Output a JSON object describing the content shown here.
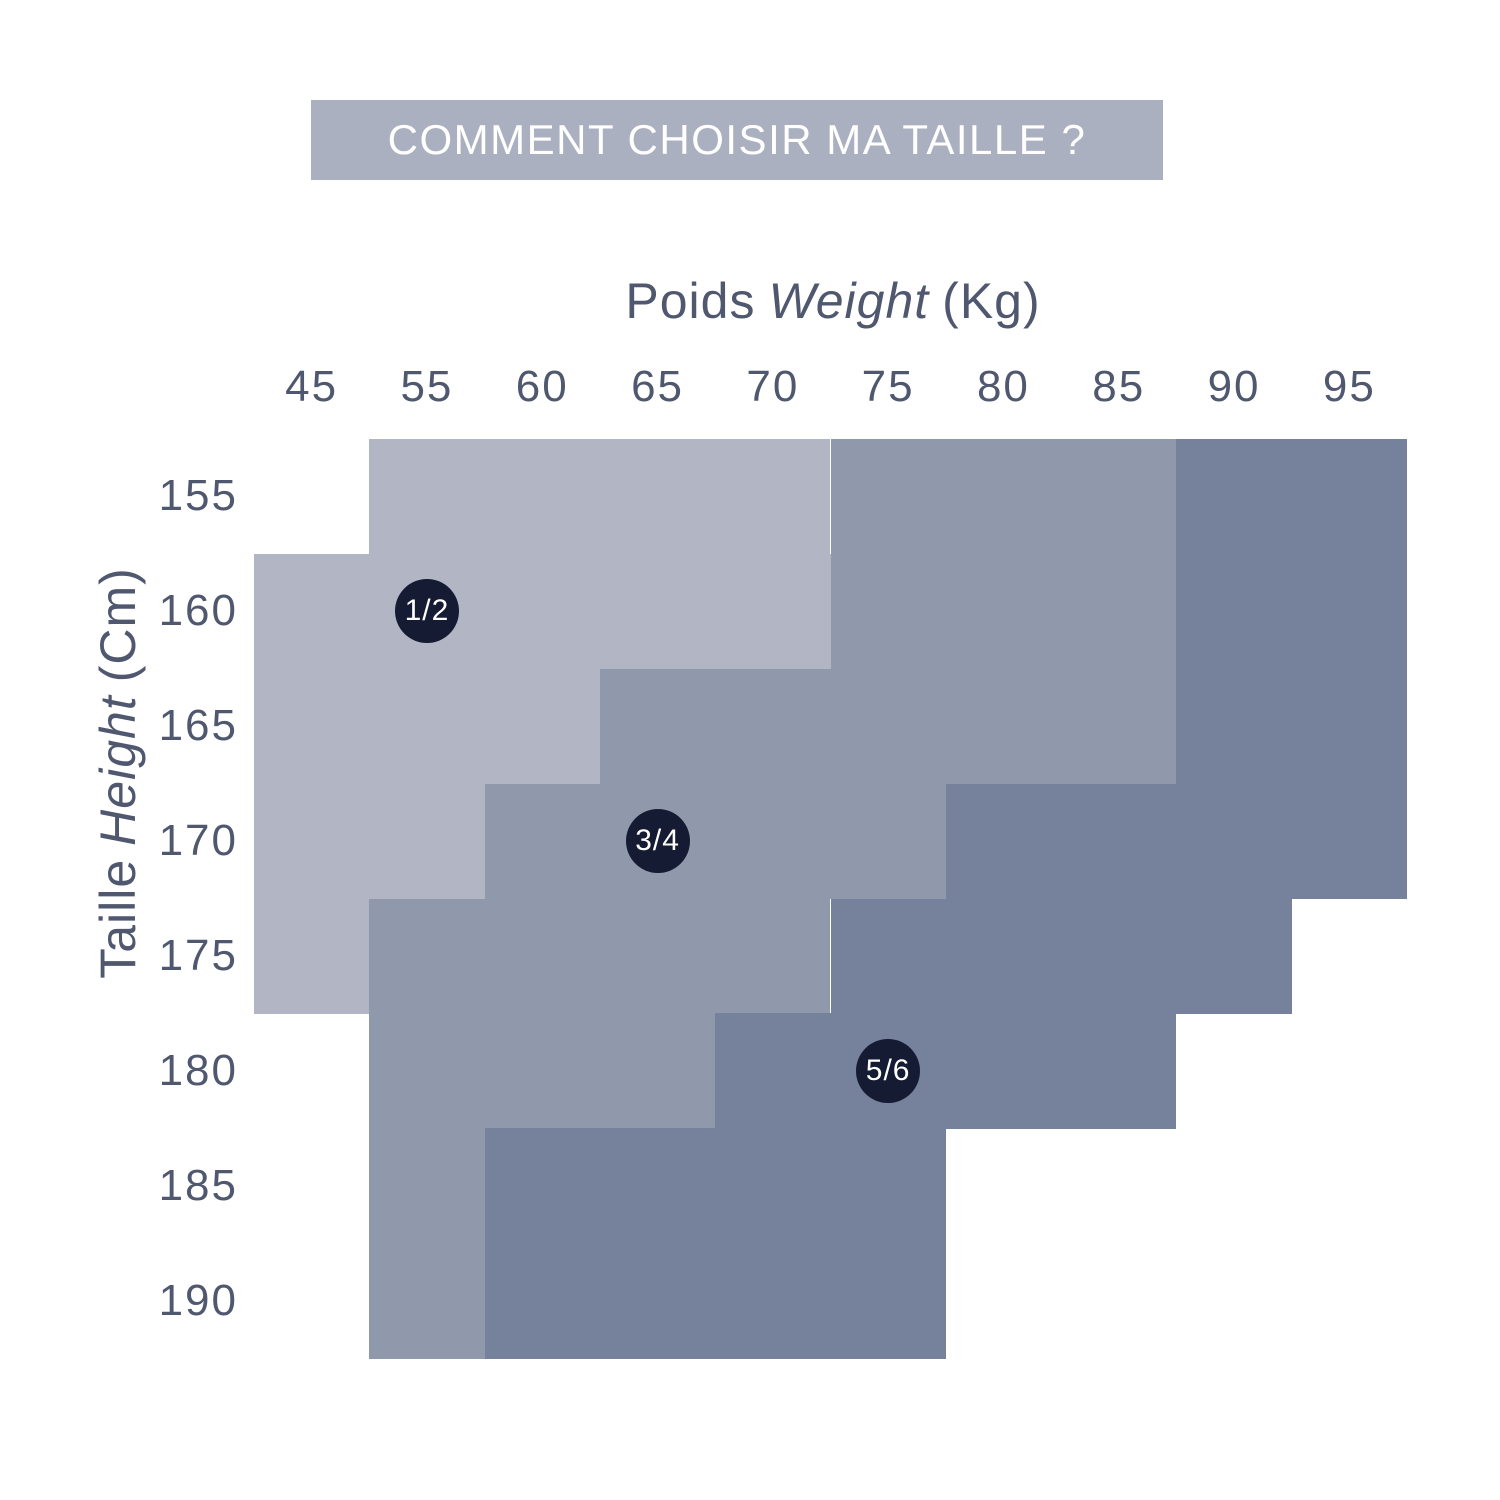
{
  "banner": {
    "text": "COMMENT CHOISIR MA TAILLE ?",
    "bg_color": "#abb0c0",
    "text_color": "#ffffff"
  },
  "chart_data": {
    "type": "heatmap",
    "title": "COMMENT CHOISIR MA TAILLE ?",
    "description": "Size-selection chart: stepped regions mapping body height and weight to garment sizes 1/2, 3/4, 5/6",
    "x_axis": {
      "label_fr": "Poids",
      "label_en": "Weight",
      "unit": "(Kg)",
      "ticks": [
        45,
        55,
        60,
        65,
        70,
        75,
        80,
        85,
        90,
        95
      ]
    },
    "y_axis": {
      "label_fr": "Taille",
      "label_en": "Height",
      "unit": "(Cm)",
      "ticks": [
        155,
        160,
        165,
        170,
        175,
        180,
        185,
        190
      ]
    },
    "col_boundaries_kg": [
      null,
      50,
      57.5,
      62.5,
      67.5,
      72.5,
      77.5,
      82.5,
      87.5,
      92.5,
      null
    ],
    "row_boundaries_cm": [
      null,
      157.5,
      162.5,
      167.5,
      172.5,
      177.5,
      182.5,
      187.5,
      null
    ],
    "text_color": "#4f586f",
    "grid": false,
    "legend_position": "in-region badges",
    "badge": {
      "bg_color": "#141b32",
      "text_color": "#ffffff"
    },
    "regions": [
      {
        "size": "1/2",
        "color": "#b2b6c4",
        "badge_cell": {
          "col": 1,
          "row": 1
        },
        "spans": [
          {
            "height_cm": 155,
            "row": 0,
            "col_start": 1,
            "col_end": 5,
            "weight_kg": [
              50,
              72.5
            ]
          },
          {
            "height_cm": 160,
            "row": 1,
            "col_start": 0,
            "col_end": 5,
            "weight_kg": [
              null,
              72.5
            ]
          },
          {
            "height_cm": 165,
            "row": 2,
            "col_start": 0,
            "col_end": 3,
            "weight_kg": [
              null,
              62.5
            ]
          },
          {
            "height_cm": 170,
            "row": 3,
            "col_start": 0,
            "col_end": 2,
            "weight_kg": [
              null,
              57.5
            ]
          },
          {
            "height_cm": 175,
            "row": 4,
            "col_start": 0,
            "col_end": 1,
            "weight_kg": [
              null,
              50
            ]
          }
        ]
      },
      {
        "size": "3/4",
        "color": "#9098ab",
        "badge_cell": {
          "col": 3,
          "row": 3
        },
        "spans": [
          {
            "height_cm": 155,
            "row": 0,
            "col_start": 5,
            "col_end": 8,
            "weight_kg": [
              72.5,
              87.5
            ]
          },
          {
            "height_cm": 160,
            "row": 1,
            "col_start": 5,
            "col_end": 8,
            "weight_kg": [
              72.5,
              87.5
            ]
          },
          {
            "height_cm": 165,
            "row": 2,
            "col_start": 3,
            "col_end": 8,
            "weight_kg": [
              62.5,
              87.5
            ]
          },
          {
            "height_cm": 170,
            "row": 3,
            "col_start": 2,
            "col_end": 6,
            "weight_kg": [
              57.5,
              77.5
            ]
          },
          {
            "height_cm": 175,
            "row": 4,
            "col_start": 1,
            "col_end": 5,
            "weight_kg": [
              50,
              72.5
            ]
          },
          {
            "height_cm": 180,
            "row": 5,
            "col_start": 1,
            "col_end": 4,
            "weight_kg": [
              50,
              67.5
            ]
          },
          {
            "height_cm": 185,
            "row": 6,
            "col_start": 1,
            "col_end": 2,
            "weight_kg": [
              50,
              57.5
            ]
          },
          {
            "height_cm": 190,
            "row": 7,
            "col_start": 1,
            "col_end": 2,
            "weight_kg": [
              50,
              57.5
            ]
          }
        ]
      },
      {
        "size": "5/6",
        "color": "#76819b",
        "badge_cell": {
          "col": 5,
          "row": 5
        },
        "spans": [
          {
            "height_cm": 155,
            "row": 0,
            "col_start": 8,
            "col_end": 10,
            "weight_kg": [
              87.5,
              null
            ]
          },
          {
            "height_cm": 160,
            "row": 1,
            "col_start": 8,
            "col_end": 10,
            "weight_kg": [
              87.5,
              null
            ]
          },
          {
            "height_cm": 165,
            "row": 2,
            "col_start": 8,
            "col_end": 10,
            "weight_kg": [
              87.5,
              null
            ]
          },
          {
            "height_cm": 170,
            "row": 3,
            "col_start": 6,
            "col_end": 10,
            "weight_kg": [
              77.5,
              null
            ]
          },
          {
            "height_cm": 175,
            "row": 4,
            "col_start": 5,
            "col_end": 9,
            "weight_kg": [
              72.5,
              92.5
            ]
          },
          {
            "height_cm": 180,
            "row": 5,
            "col_start": 4,
            "col_end": 8,
            "weight_kg": [
              67.5,
              87.5
            ]
          },
          {
            "height_cm": 185,
            "row": 6,
            "col_start": 2,
            "col_end": 6,
            "weight_kg": [
              57.5,
              77.5
            ]
          },
          {
            "height_cm": 190,
            "row": 7,
            "col_start": 2,
            "col_end": 6,
            "weight_kg": [
              57.5,
              77.5
            ]
          }
        ]
      }
    ]
  }
}
